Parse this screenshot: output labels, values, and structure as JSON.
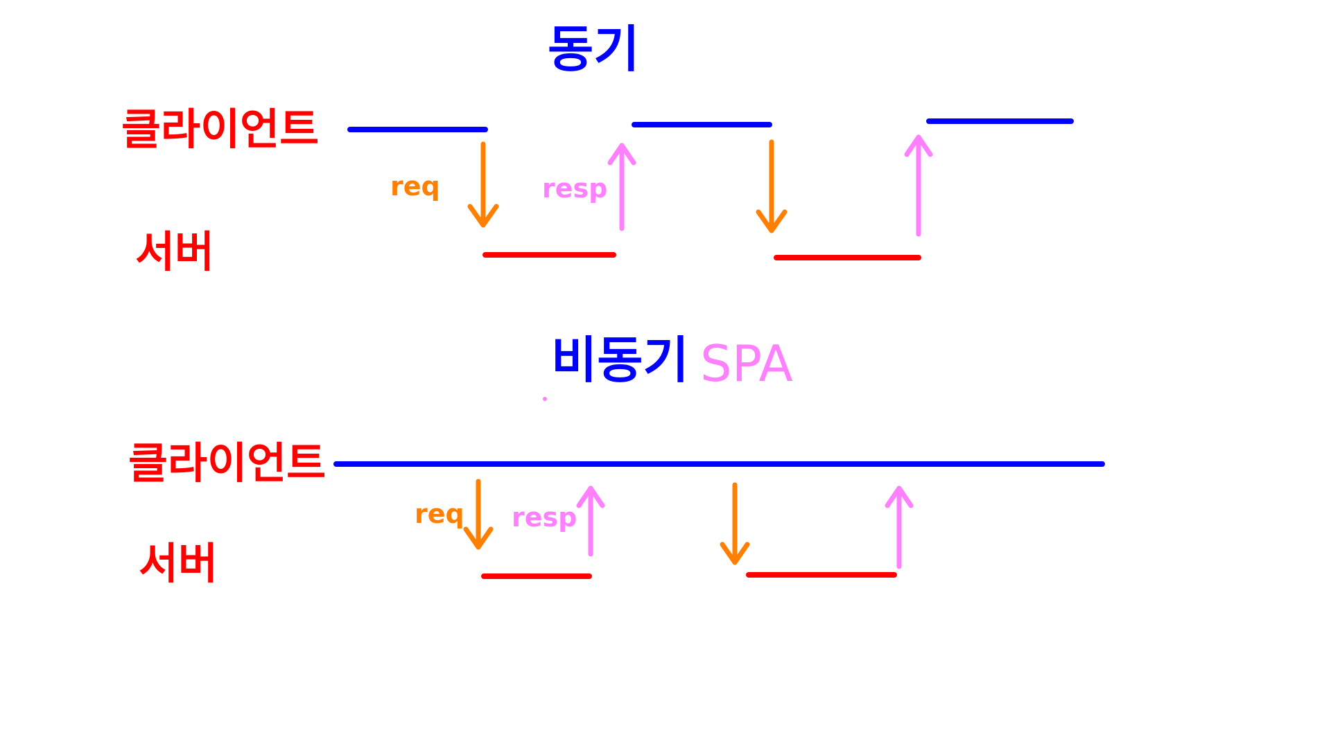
{
  "colors": {
    "client_line": "#0000ff",
    "server_line": "#ff0000",
    "label": "#ff0000",
    "title": "#0000ff",
    "request": "#ff8000",
    "response": "#ff80ff"
  },
  "sync": {
    "title": "동기",
    "client_label": "클라이언트",
    "server_label": "서버",
    "req_label": "req",
    "resp_label": "resp"
  },
  "async": {
    "title": "비동기",
    "tag": "SPA",
    "client_label": "클라이언트",
    "server_label": "서버",
    "req_label": "req",
    "resp_label": "resp"
  }
}
